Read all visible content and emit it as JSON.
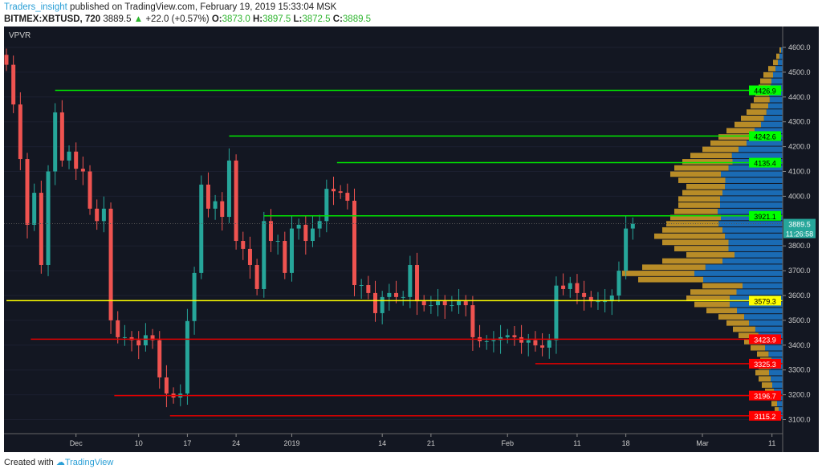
{
  "header": {
    "author": "Traders_insight",
    "published": "published on TradingView.com, February 19, 2019 15:33:04 MSK",
    "symbol": "BITMEX:XBTUSD, 720",
    "last": "3889.5",
    "change": "+22.0 (+0.57%)",
    "o_label": "O:",
    "o": "3873.0",
    "h_label": "H:",
    "h": "3897.5",
    "l_label": "L:",
    "l": "3872.5",
    "c_label": "C:",
    "c": "3889.5"
  },
  "footer": {
    "created": "Created with",
    "brand": "TradingView"
  },
  "indicator_label": "VPVR",
  "chart_data": {
    "type": "candlestick",
    "ylim": [
      3050,
      4650
    ],
    "y_ticks": [
      "4600.0",
      "4500.0",
      "4400.0",
      "4300.0",
      "4200.0",
      "4100.0",
      "4000.0",
      "3800.0",
      "3700.0",
      "3600.0",
      "3500.0",
      "3400.0",
      "3300.0",
      "3200.0",
      "3100.0"
    ],
    "x_ticks": [
      {
        "label": "Dec",
        "day": 10
      },
      {
        "label": "10",
        "day": 19
      },
      {
        "label": "17",
        "day": 26
      },
      {
        "label": "24",
        "day": 33
      },
      {
        "label": "2019",
        "day": 41
      },
      {
        "label": "14",
        "day": 54
      },
      {
        "label": "21",
        "day": 61
      },
      {
        "label": "Feb",
        "day": 72
      },
      {
        "label": "11",
        "day": 82
      },
      {
        "label": "18",
        "day": 89
      },
      {
        "label": "Mar",
        "day": 100
      },
      {
        "label": "11",
        "day": 110
      }
    ],
    "closes": [
      4530,
      4370,
      4150,
      3885,
      4014,
      3723,
      4100,
      4338,
      4144,
      4180,
      4111,
      4100,
      3950,
      3900,
      3950,
      3500,
      3432,
      3432,
      3420,
      3399,
      3440,
      3420,
      3270,
      3205,
      3189,
      3205,
      3497,
      3691,
      4047,
      3950,
      3980,
      3917,
      4144,
      3820,
      3788,
      3723,
      3626,
      3900,
      3820,
      3820,
      3691,
      3870,
      3885,
      3820,
      3870,
      3900,
      4030,
      4020,
      4014,
      3982,
      3642,
      3642,
      3610,
      3529,
      3594,
      3610,
      3594,
      3594,
      3723,
      3577,
      3561,
      3561,
      3577,
      3561,
      3561,
      3577,
      3561,
      3432,
      3416,
      3416,
      3420,
      3432,
      3440,
      3432,
      3410,
      3420,
      3399,
      3390,
      3420,
      3640,
      3626,
      3650,
      3610,
      3594,
      3577,
      3577,
      3577,
      3600,
      3700,
      3870,
      3889.5
    ],
    "levels": [
      {
        "price": "4426.9",
        "color": "#00e600",
        "label_bg": "#00ff00",
        "label_fg": "#000",
        "start_day": 7
      },
      {
        "price": "4242.6",
        "color": "#00e600",
        "label_bg": "#00ff00",
        "label_fg": "#000",
        "start_day": 32
      },
      {
        "price": "4135.4",
        "color": "#00e600",
        "label_bg": "#00ff00",
        "label_fg": "#000",
        "start_day": 47.5
      },
      {
        "price": "3921.1",
        "color": "#00e600",
        "label_bg": "#00ff00",
        "label_fg": "#000",
        "start_day": 37
      },
      {
        "price": "3579.3",
        "color": "#ffff00",
        "label_bg": "#ffff00",
        "label_fg": "#000",
        "start_day": 0
      },
      {
        "price": "3423.9",
        "color": "#e00000",
        "label_bg": "#ff0000",
        "label_fg": "#fff",
        "start_day": 3.5
      },
      {
        "price": "3325.3",
        "color": "#e00000",
        "label_bg": "#ff0000",
        "label_fg": "#fff",
        "start_day": 76
      },
      {
        "price": "3196.7",
        "color": "#e00000",
        "label_bg": "#ff0000",
        "label_fg": "#fff",
        "start_day": 15.5
      },
      {
        "price": "3115.2",
        "color": "#e00000",
        "label_bg": "#ff0000",
        "label_fg": "#fff",
        "start_day": 23.5
      }
    ],
    "last_price": {
      "price": "3889.5",
      "countdown": "11:26:58",
      "bg": "#26a69a"
    },
    "volume_profile": {
      "start": 3100,
      "step": 25,
      "volume": [
        8,
        10,
        14,
        18,
        22,
        26,
        30,
        34,
        30,
        28,
        32,
        40,
        48,
        55,
        62,
        70,
        80,
        95,
        110,
        120,
        115,
        100,
        180,
        200,
        175,
        150,
        120,
        135,
        150,
        160,
        150,
        145,
        140,
        135,
        130,
        130,
        125,
        120,
        130,
        140,
        135,
        125,
        115,
        100,
        90,
        80,
        70,
        60,
        52,
        45,
        40,
        36,
        34,
        30,
        28,
        24,
        18,
        12,
        8,
        4
      ],
      "up_share": [
        0.5,
        0.5,
        0.5,
        0.5,
        0.5,
        0.5,
        0.5,
        0.5,
        0.5,
        0.5,
        0.55,
        0.55,
        0.55,
        0.55,
        0.55,
        0.6,
        0.6,
        0.6,
        0.6,
        0.55,
        0.5,
        0.5,
        0.55,
        0.55,
        0.55,
        0.5,
        0.5,
        0.5,
        0.45,
        0.45,
        0.5,
        0.55,
        0.55,
        0.6,
        0.6,
        0.6,
        0.6,
        0.6,
        0.55,
        0.55,
        0.5,
        0.5,
        0.55,
        0.55,
        0.5,
        0.5,
        0.5,
        0.45,
        0.45,
        0.45,
        0.45,
        0.45,
        0.5,
        0.5,
        0.5,
        0.5,
        0.5,
        0.5,
        0.5,
        0.5
      ]
    },
    "colors": {
      "up": "#26a69a",
      "down": "#ef5350",
      "vp_up": "#1e88e5",
      "vp_down": "#f0b429"
    }
  }
}
